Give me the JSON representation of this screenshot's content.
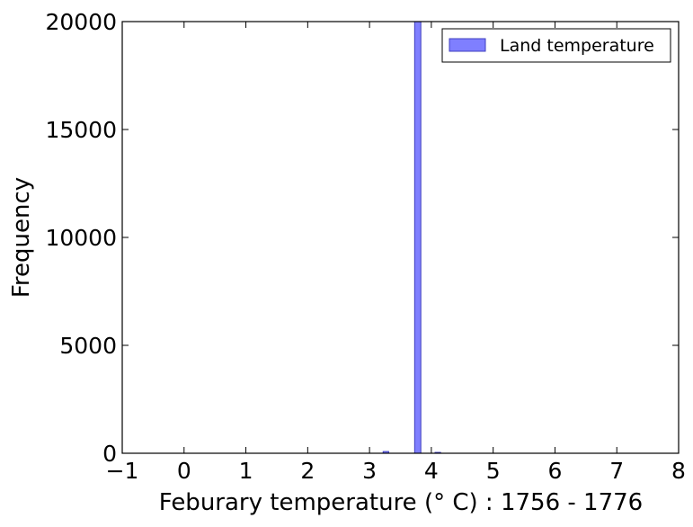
{
  "chart_data": {
    "type": "bar",
    "title": "",
    "xlabel": "Feburary temperature (° C) : 1756 - 1776",
    "ylabel": "Frequency",
    "xlim": [
      -1,
      8
    ],
    "ylim": [
      0,
      20000
    ],
    "x_ticks": [
      -1,
      0,
      1,
      2,
      3,
      4,
      5,
      6,
      7,
      8
    ],
    "y_ticks": [
      0,
      5000,
      10000,
      15000,
      20000
    ],
    "x_tick_labels": [
      "−1",
      "0",
      "1",
      "2",
      "3",
      "4",
      "5",
      "6",
      "7",
      "8"
    ],
    "y_tick_labels": [
      "0",
      "5000",
      "10000",
      "15000",
      "20000"
    ],
    "grid": false,
    "legend_position": "top-right",
    "series": [
      {
        "name": "Land temperature",
        "color": "#7f7fff",
        "edge_color": "#3f3fbf",
        "bins": [
          {
            "x0": 3.22,
            "x1": 3.31,
            "count": 80
          },
          {
            "x0": 3.73,
            "x1": 3.83,
            "count": 21000
          },
          {
            "x0": 4.06,
            "x1": 4.15,
            "count": 40
          }
        ]
      }
    ]
  }
}
